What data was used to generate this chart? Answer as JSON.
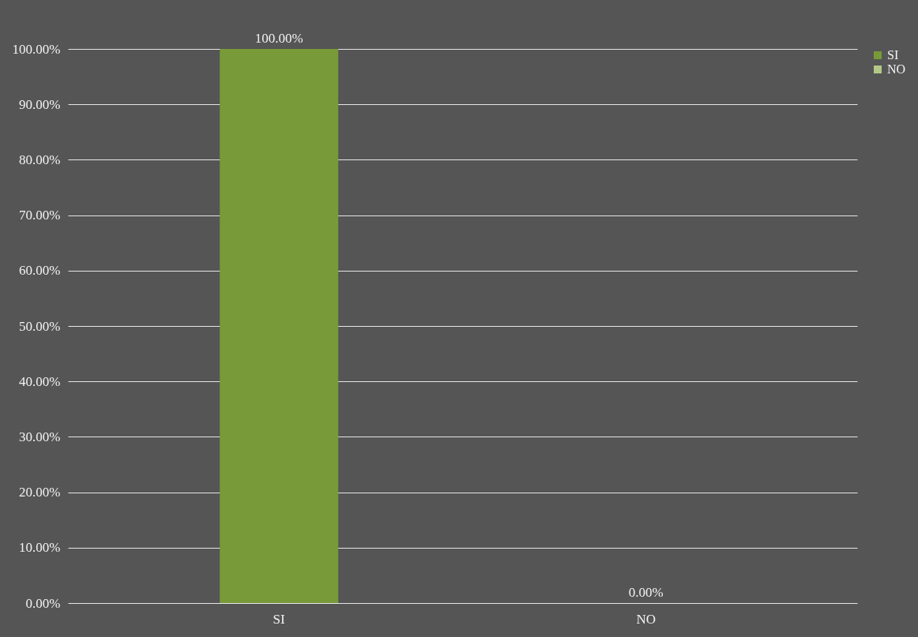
{
  "chart_data": {
    "type": "bar",
    "categories": [
      "SI",
      "NO"
    ],
    "series": [
      {
        "name": "SI",
        "color": "#789a38",
        "values": [
          100,
          null
        ],
        "value_labels": [
          "100.00%",
          null
        ]
      },
      {
        "name": "NO",
        "color": "#b3c887",
        "values": [
          null,
          0
        ],
        "value_labels": [
          null,
          "0.00%"
        ]
      }
    ],
    "ylim": [
      0,
      100
    ],
    "yticks": [
      {
        "value": 0,
        "label": "0.00%"
      },
      {
        "value": 10,
        "label": "10.00%"
      },
      {
        "value": 20,
        "label": "20.00%"
      },
      {
        "value": 30,
        "label": "30.00%"
      },
      {
        "value": 40,
        "label": "40.00%"
      },
      {
        "value": 50,
        "label": "50.00%"
      },
      {
        "value": 60,
        "label": "60.00%"
      },
      {
        "value": 70,
        "label": "70.00%"
      },
      {
        "value": 80,
        "label": "80.00%"
      },
      {
        "value": 90,
        "label": "90.00%"
      },
      {
        "value": 100,
        "label": "100.00%"
      }
    ],
    "grid": "y",
    "legend": "right"
  }
}
